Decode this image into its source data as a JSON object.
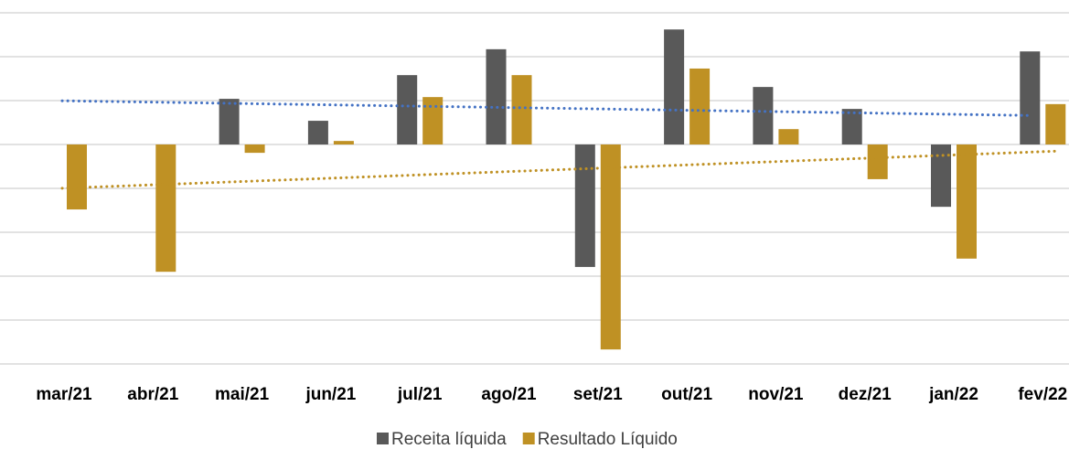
{
  "chart_data": {
    "type": "bar",
    "categories": [
      "mar/21",
      "abr/21",
      "mai/21",
      "jun/21",
      "jul/21",
      "ago/21",
      "set/21",
      "out/21",
      "nov/21",
      "dez/21",
      "jan/22",
      "fev/22"
    ],
    "series": [
      {
        "name": "Receita líquida",
        "color": "#595959",
        "trendline_color": "#4472c4",
        "values": [
          null,
          null,
          1.04,
          0.54,
          1.58,
          2.17,
          -2.79,
          2.62,
          1.31,
          0.81,
          -1.42,
          2.12
        ]
      },
      {
        "name": "Resultado Líquido",
        "color": "#bf9124",
        "trendline_color": "#bf9124",
        "values": [
          -1.48,
          -2.9,
          -0.19,
          0.08,
          1.08,
          1.58,
          -4.67,
          1.73,
          0.35,
          -0.79,
          -2.6,
          0.92
        ]
      }
    ],
    "trendline": true,
    "ylim": [
      -5,
      3
    ],
    "yticks": [
      -5,
      -4,
      -3,
      -2,
      -1,
      0,
      1,
      2,
      3
    ],
    "grid": true,
    "legend": "bottom"
  }
}
